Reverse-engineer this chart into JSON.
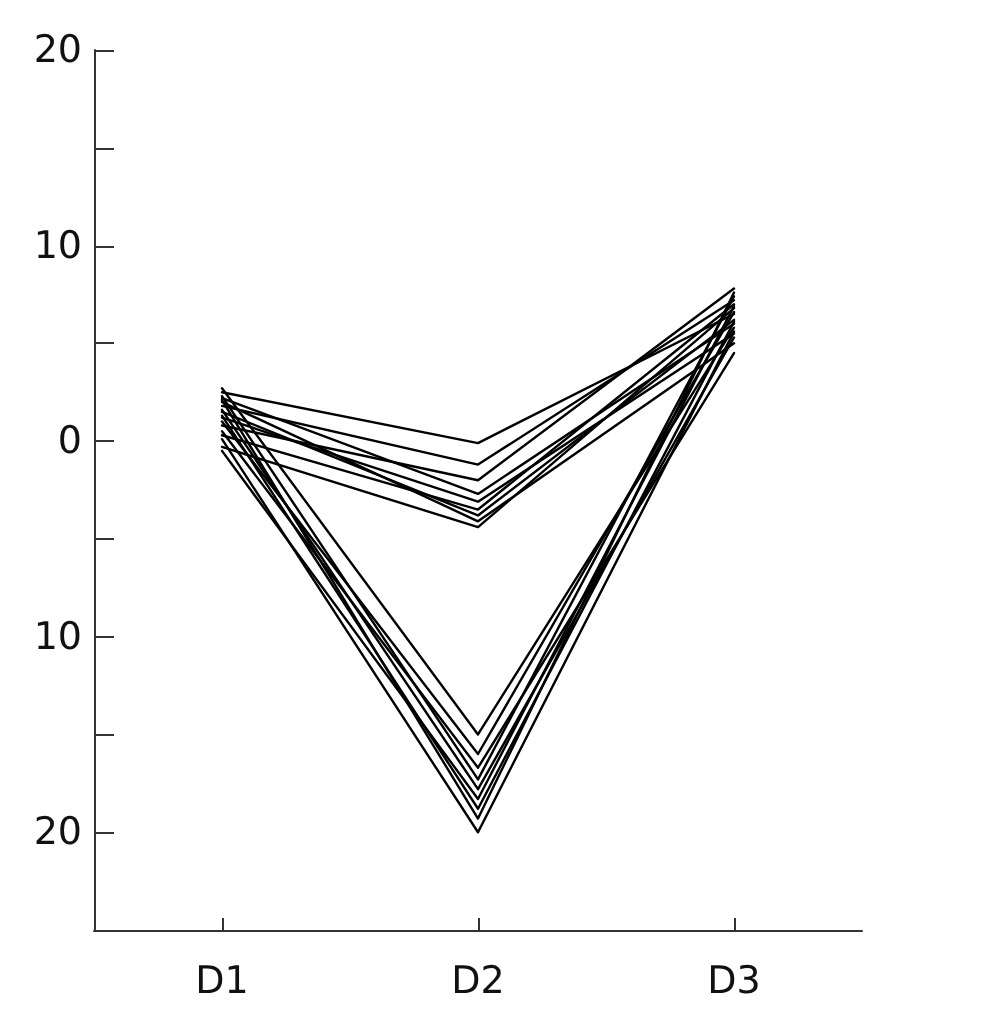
{
  "chart_data": {
    "type": "line",
    "categories": [
      "D1",
      "D2",
      "D3"
    ],
    "ylim": [
      -25,
      20
    ],
    "yticks": [
      20,
      {
        "value": 15,
        "label": null
      },
      10,
      {
        "value": 5,
        "label": null
      },
      0,
      {
        "value": -5,
        "label": null
      },
      {
        "value": -10,
        "label": "10"
      },
      {
        "value": -15,
        "label": null
      },
      {
        "value": -20,
        "label": "20"
      }
    ],
    "marker": "none",
    "line_style": "solid",
    "series": [
      {
        "color": "#000000",
        "values": [
          2.5,
          -0.1,
          6.5
        ]
      },
      {
        "color": "#000000",
        "values": [
          1.8,
          -1.2,
          7.2
        ]
      },
      {
        "color": "#000000",
        "values": [
          0.8,
          -2,
          7.8
        ]
      },
      {
        "color": "#000000",
        "values": [
          2.2,
          -2.7,
          6.0
        ]
      },
      {
        "color": "#000000",
        "values": [
          1.2,
          -3.1,
          5.5
        ]
      },
      {
        "color": "#000000",
        "values": [
          0.3,
          -3.5,
          7.0
        ]
      },
      {
        "color": "#000000",
        "values": [
          1.5,
          -3.8,
          6.2
        ]
      },
      {
        "color": "#000000",
        "values": [
          2.0,
          -4.1,
          5.0
        ]
      },
      {
        "color": "#000000",
        "values": [
          -0.3,
          -4.4,
          6.8
        ]
      },
      {
        "color": "#000000",
        "values": [
          2.7,
          -15,
          5.8
        ]
      },
      {
        "color": "#000000",
        "values": [
          1.0,
          -16,
          6.6
        ]
      },
      {
        "color": "#000000",
        "values": [
          0.5,
          -16.7,
          4.5
        ]
      },
      {
        "color": "#000000",
        "values": [
          2.3,
          -17.3,
          7.4
        ]
      },
      {
        "color": "#000000",
        "values": [
          1.6,
          -17.8,
          5.3
        ]
      },
      {
        "color": "#000000",
        "values": [
          -0.5,
          -18.3,
          6.9
        ]
      },
      {
        "color": "#000000",
        "values": [
          1.3,
          -18.8,
          6.1
        ]
      },
      {
        "color": "#000000",
        "values": [
          2.1,
          -19.3,
          7.6
        ]
      },
      {
        "color": "#000000",
        "values": [
          0.1,
          -20,
          5.6
        ]
      }
    ]
  }
}
